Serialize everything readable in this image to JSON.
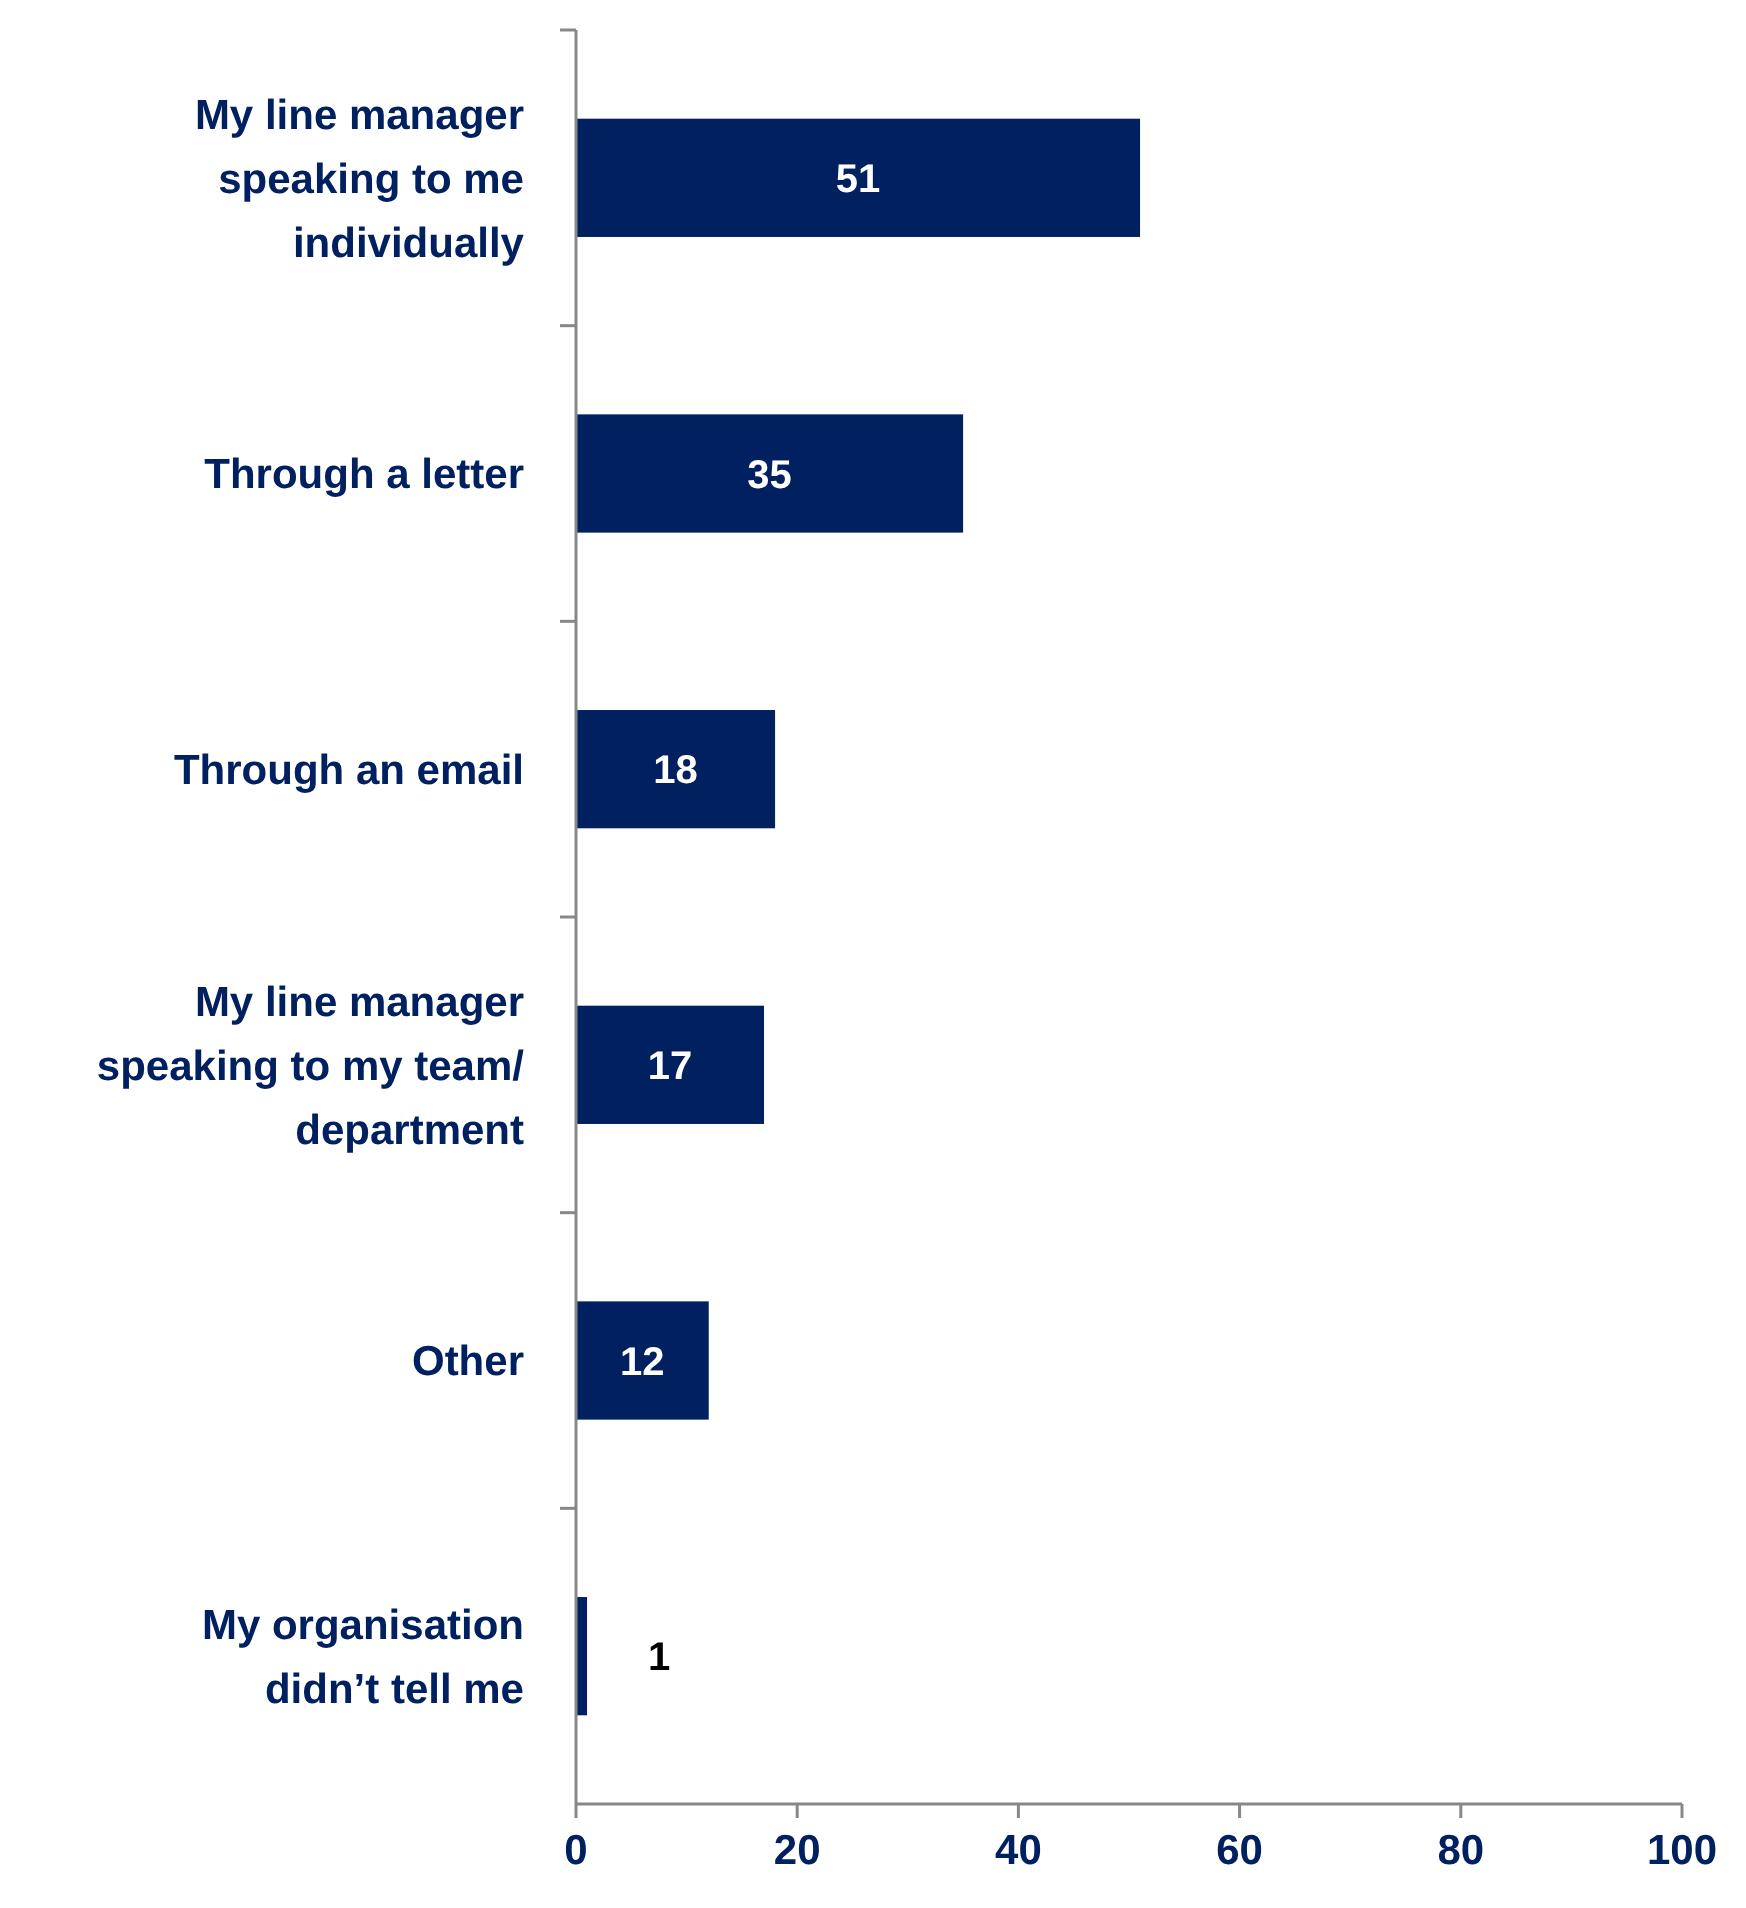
{
  "chart_data": {
    "type": "bar",
    "orientation": "horizontal",
    "categories": [
      "My line manager speaking to me individually",
      "Through a letter",
      "Through an email",
      "My line manager speaking to my team/ department",
      "Other",
      "My organisation didn’t tell me"
    ],
    "values": [
      51,
      35,
      18,
      17,
      12,
      1
    ],
    "color": "#002060",
    "xlim": [
      0,
      100
    ],
    "xticks": [
      0,
      20,
      40,
      60,
      80,
      100
    ],
    "data_labels": true
  }
}
